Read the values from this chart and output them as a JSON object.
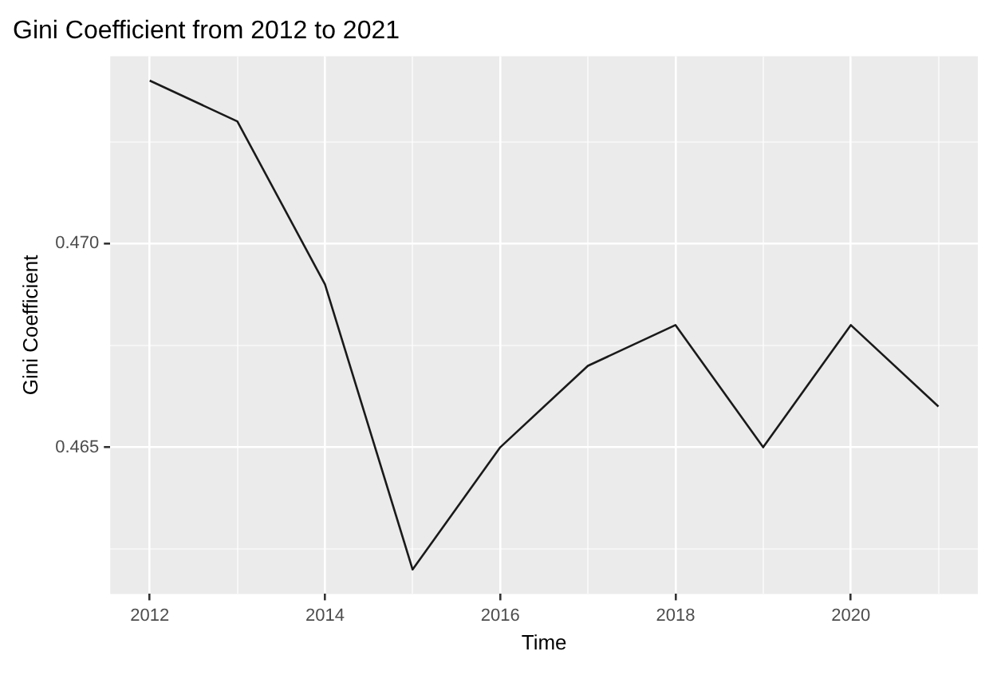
{
  "chart_data": {
    "type": "line",
    "title": "Gini Coefficient from 2012 to 2021",
    "xlabel": "Time",
    "ylabel": "Gini Coefficient",
    "x": [
      2012,
      2013,
      2014,
      2015,
      2016,
      2017,
      2018,
      2019,
      2020,
      2021
    ],
    "series": [
      {
        "color": "#1a1a1a",
        "values": [
          0.474,
          0.473,
          0.469,
          0.462,
          0.465,
          0.467,
          0.468,
          0.465,
          0.468,
          0.466
        ]
      }
    ],
    "xlim": [
      2011.55,
      2021.45
    ],
    "xticks": [
      2012,
      {
        "value": 2013,
        "label": null
      },
      2014,
      {
        "value": 2015,
        "label": null
      },
      2016,
      {
        "value": 2017,
        "label": null
      },
      2018,
      {
        "value": 2019,
        "label": null
      },
      2020,
      {
        "value": 2021,
        "label": null
      }
    ],
    "ylim": [
      0.4614,
      0.4746
    ],
    "yticks": [
      {
        "value": 0.4625,
        "label": null
      },
      {
        "value": 0.465,
        "label": "0.465"
      },
      {
        "value": 0.4675,
        "label": null
      },
      {
        "value": 0.47,
        "label": "0.470"
      },
      {
        "value": 0.4725,
        "label": null
      }
    ],
    "grid": true,
    "legend": false,
    "marker": "none",
    "line_style": "solid"
  }
}
